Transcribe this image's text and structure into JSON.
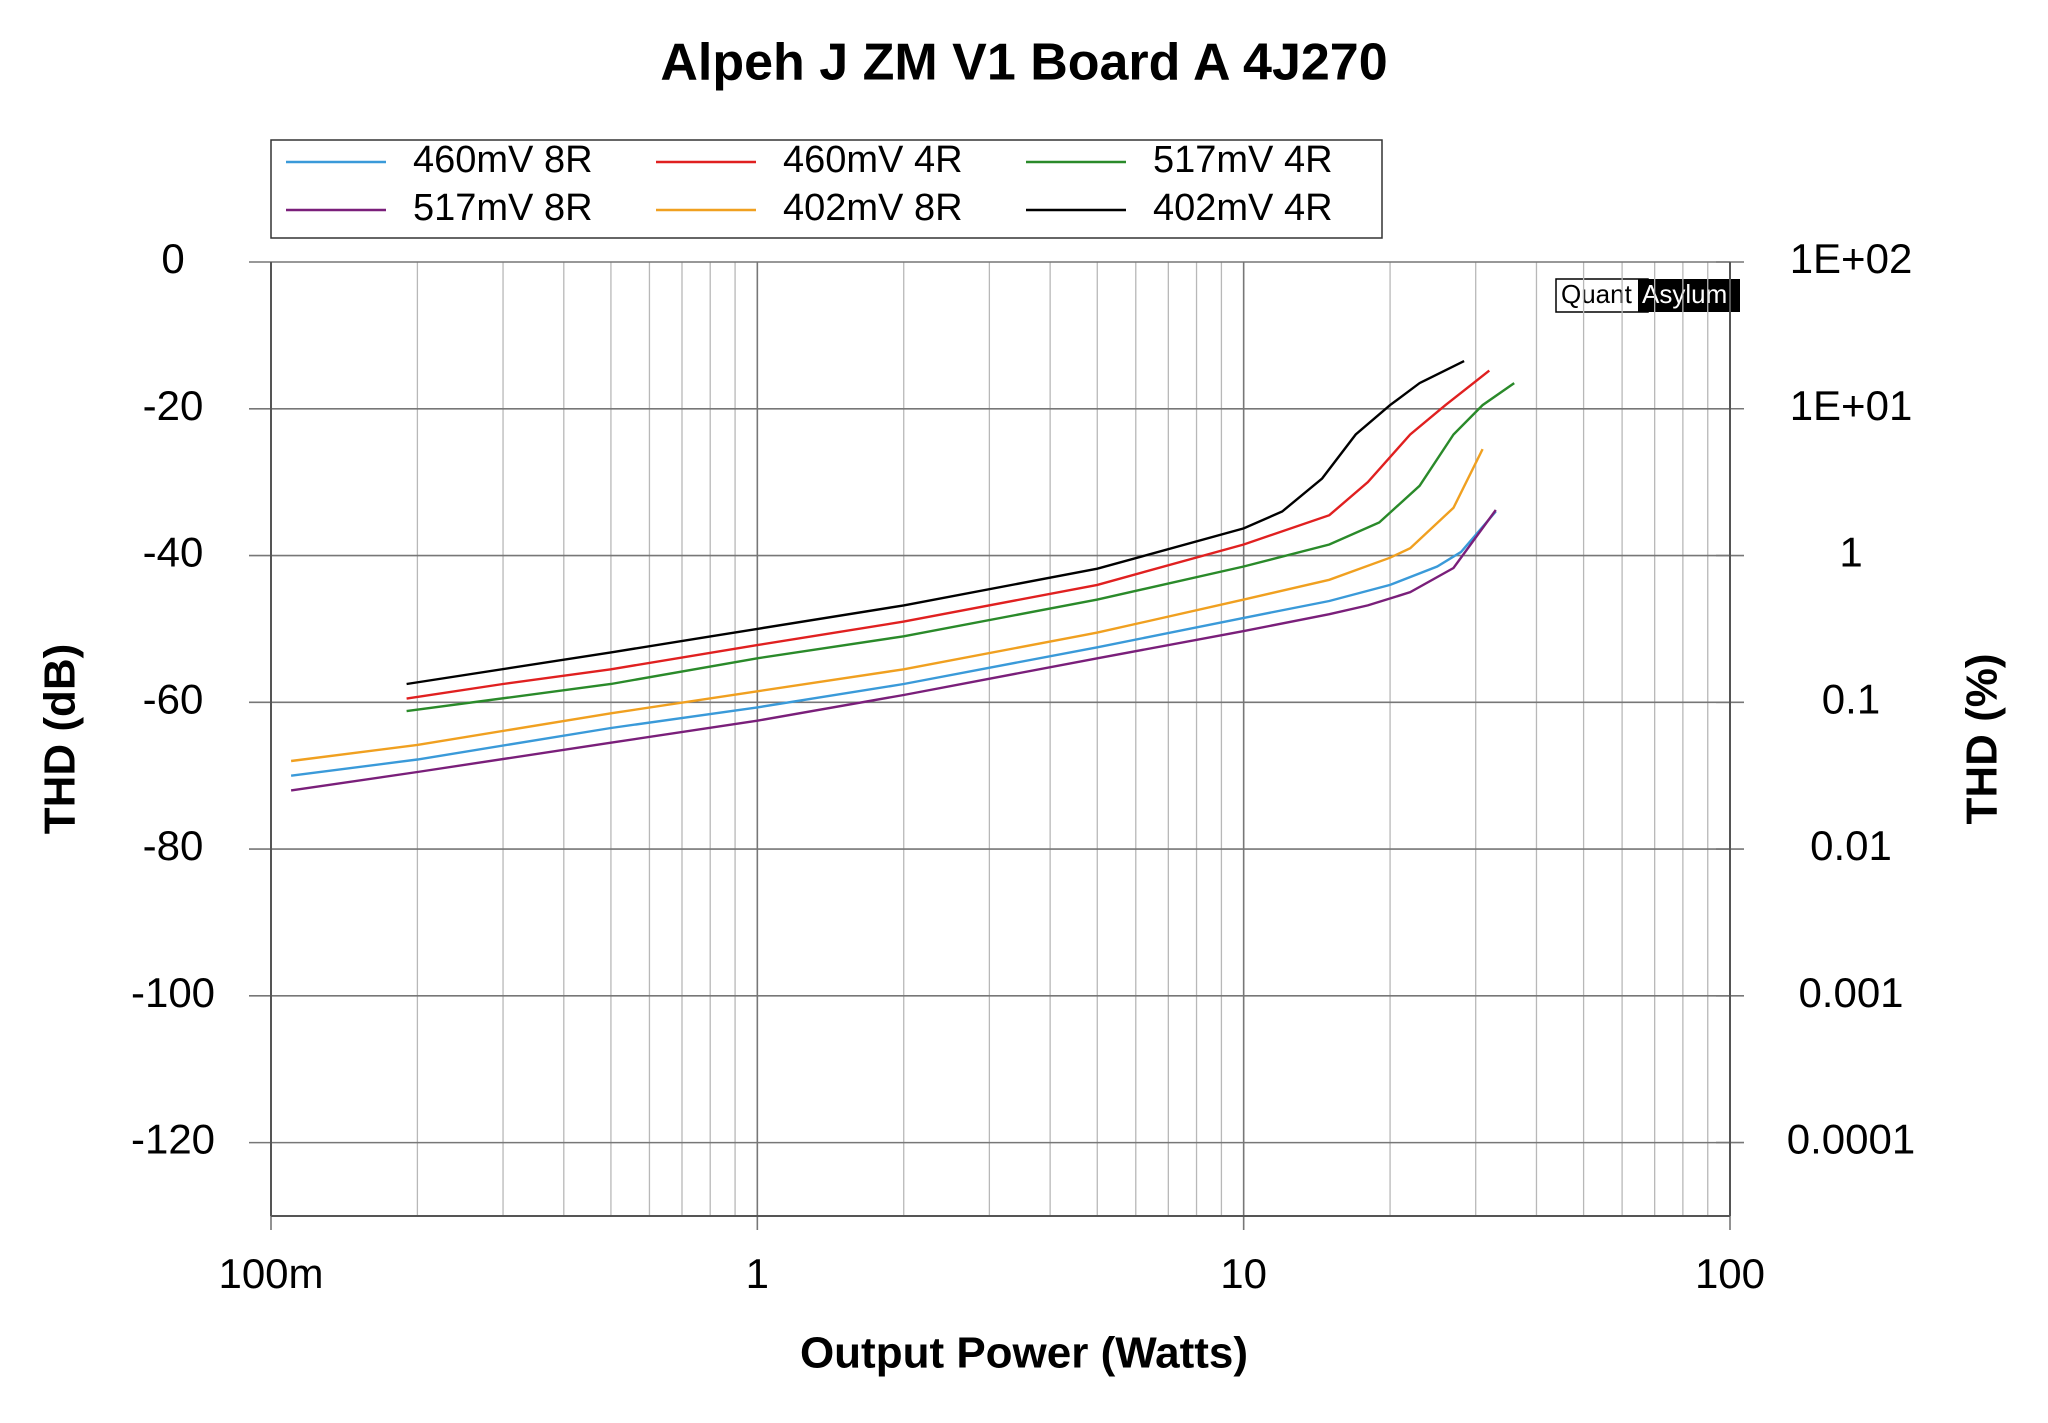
{
  "chart_data": {
    "type": "line",
    "title": "Alpeh J ZM V1 Board A 4J270",
    "xlabel": "Output Power (Watts)",
    "ylabel": "THD (dB)",
    "y2label": "THD (%)",
    "watermark": [
      "Quant",
      "Asylum"
    ],
    "xscale": "log",
    "y2scale": "log",
    "grid": true,
    "legend": "top-left",
    "xlim": [
      0.1,
      100
    ],
    "xticks": [
      {
        "value": 0.1,
        "label": "100m"
      },
      1,
      10,
      100
    ],
    "xminorticks": [
      0.2,
      0.3,
      0.4,
      0.5,
      0.6,
      0.7,
      0.8,
      0.9,
      2,
      3,
      4,
      5,
      6,
      7,
      8,
      9,
      20,
      30,
      40,
      50,
      60,
      70,
      80,
      90
    ],
    "ylim": [
      -130,
      0
    ],
    "yticks": [
      0,
      -20,
      -40,
      -60,
      -80,
      -100,
      -120
    ],
    "y2lim": [
      3.16e-05,
      100
    ],
    "y2ticks": [
      {
        "value": 100,
        "label": "1E+02"
      },
      {
        "value": 10,
        "label": "1E+01"
      },
      1,
      0.1,
      0.01,
      0.001,
      0.0001
    ],
    "series": [
      {
        "name": "460mV 8R",
        "color": "#3a9ad9",
        "x": [
          0.11,
          0.2,
          0.5,
          1,
          2,
          5,
          10,
          15,
          20,
          25,
          28,
          33
        ],
        "values": [
          -70,
          -67.8,
          -63.5,
          -60.7,
          -57.5,
          -52.5,
          -48.5,
          -46.2,
          -44,
          -41.5,
          -39.5,
          -34
        ]
      },
      {
        "name": "460mV 4R",
        "color": "#e02020",
        "x": [
          0.19,
          0.3,
          0.5,
          1,
          2,
          5,
          10,
          15,
          18,
          22,
          26,
          32
        ],
        "values": [
          -59.5,
          -57.5,
          -55.5,
          -52.2,
          -49,
          -44,
          -38.5,
          -34.5,
          -30,
          -23.5,
          -19.5,
          -14.8
        ]
      },
      {
        "name": "517mV 4R",
        "color": "#2a8a2a",
        "x": [
          0.19,
          0.5,
          1,
          2,
          5,
          10,
          15,
          19,
          23,
          27,
          31,
          36
        ],
        "values": [
          -61.2,
          -57.5,
          -54,
          -51,
          -46,
          -41.5,
          -38.5,
          -35.5,
          -30.5,
          -23.5,
          -19.5,
          -16.5
        ]
      },
      {
        "name": "517mV 8R",
        "color": "#7a1f7a",
        "x": [
          0.11,
          0.2,
          0.5,
          1,
          2,
          5,
          10,
          15,
          18,
          22,
          27,
          33
        ],
        "values": [
          -72,
          -69.5,
          -65.5,
          -62.5,
          -59,
          -54,
          -50.3,
          -48,
          -46.8,
          -45,
          -41.7,
          -33.8
        ]
      },
      {
        "name": "402mV 8R",
        "color": "#f0a020",
        "x": [
          0.11,
          0.2,
          0.5,
          1,
          2,
          5,
          10,
          15,
          20,
          22,
          27,
          31
        ],
        "values": [
          -68,
          -65.8,
          -61.5,
          -58.5,
          -55.5,
          -50.5,
          -46,
          -43.3,
          -40.3,
          -39,
          -33.5,
          -25.5
        ]
      },
      {
        "name": "402mV 4R",
        "color": "#000000",
        "x": [
          0.19,
          0.5,
          1,
          2,
          5,
          10,
          12,
          14.5,
          17,
          20,
          23,
          28.4
        ],
        "values": [
          -57.5,
          -53.2,
          -50,
          -46.8,
          -41.8,
          -36.3,
          -34,
          -29.5,
          -23.5,
          -19.5,
          -16.5,
          -13.5
        ]
      }
    ]
  }
}
